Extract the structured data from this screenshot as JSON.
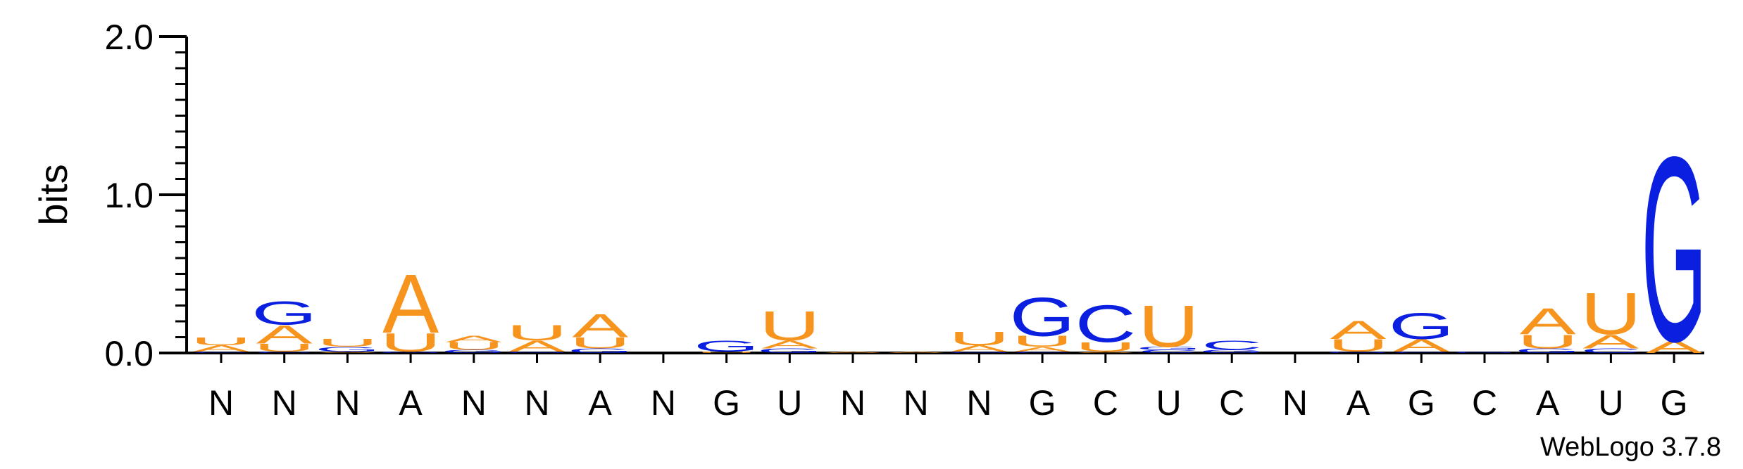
{
  "chart_data": {
    "type": "sequence-logo",
    "ylabel": "bits",
    "ylim": [
      0,
      2.0
    ],
    "yticks": [
      "0.0",
      "1.0",
      "2.0"
    ],
    "positions": [
      "N",
      "N",
      "N",
      "A",
      "N",
      "N",
      "A",
      "N",
      "G",
      "U",
      "N",
      "N",
      "N",
      "G",
      "C",
      "U",
      "C",
      "N",
      "A",
      "G",
      "C",
      "A",
      "U",
      "G"
    ],
    "colors": {
      "A": "#f7941d",
      "U": "#f7941d",
      "G": "#0a1fe0",
      "C": "#0a1fe0"
    },
    "stacks": [
      [
        [
          "C",
          0.01
        ],
        [
          "A",
          0.04
        ],
        [
          "U",
          0.05
        ]
      ],
      [
        [
          "C",
          0.01
        ],
        [
          "U",
          0.05
        ],
        [
          "A",
          0.12
        ],
        [
          "G",
          0.15
        ]
      ],
      [
        [
          "A",
          0.01
        ],
        [
          "G",
          0.03
        ],
        [
          "U",
          0.05
        ]
      ],
      [
        [
          "G",
          0.01
        ],
        [
          "U",
          0.12
        ],
        [
          "A",
          0.38
        ]
      ],
      [
        [
          "G",
          0.02
        ],
        [
          "U",
          0.05
        ],
        [
          "A",
          0.04
        ]
      ],
      [
        [
          "G",
          0.01
        ],
        [
          "A",
          0.07
        ],
        [
          "U",
          0.1
        ]
      ],
      [
        [
          "G",
          0.03
        ],
        [
          "U",
          0.07
        ],
        [
          "A",
          0.15
        ]
      ],
      [],
      [
        [
          "U",
          0.01
        ],
        [
          "G",
          0.07
        ]
      ],
      [
        [
          "G",
          0.03
        ],
        [
          "A",
          0.05
        ],
        [
          "U",
          0.19
        ]
      ],
      [
        [
          "A",
          0.01
        ]
      ],
      [
        [
          "A",
          0.01
        ]
      ],
      [
        [
          "G",
          0.01
        ],
        [
          "A",
          0.04
        ],
        [
          "U",
          0.09
        ]
      ],
      [
        [
          "C",
          0.01
        ],
        [
          "A",
          0.03
        ],
        [
          "U",
          0.07
        ],
        [
          "G",
          0.25
        ]
      ],
      [
        [
          "A",
          0.01
        ],
        [
          "U",
          0.06
        ],
        [
          "C",
          0.24
        ]
      ],
      [
        [
          "C",
          0.02
        ],
        [
          "G",
          0.02
        ],
        [
          "U",
          0.27
        ]
      ],
      [
        [
          "G",
          0.02
        ],
        [
          "C",
          0.06
        ]
      ],
      [],
      [
        [
          "G",
          0.01
        ],
        [
          "U",
          0.08
        ],
        [
          "A",
          0.12
        ]
      ],
      [
        [
          "C",
          0.01
        ],
        [
          "A",
          0.08
        ],
        [
          "G",
          0.17
        ]
      ],
      [
        [
          "G",
          0.01
        ]
      ],
      [
        [
          "G",
          0.03
        ],
        [
          "U",
          0.09
        ],
        [
          "A",
          0.17
        ]
      ],
      [
        [
          "C",
          0.03
        ],
        [
          "A",
          0.09
        ],
        [
          "U",
          0.27
        ]
      ],
      [
        [
          "A",
          0.08
        ],
        [
          "G",
          1.2
        ]
      ]
    ]
  },
  "footer": "WebLogo 3.7.8"
}
